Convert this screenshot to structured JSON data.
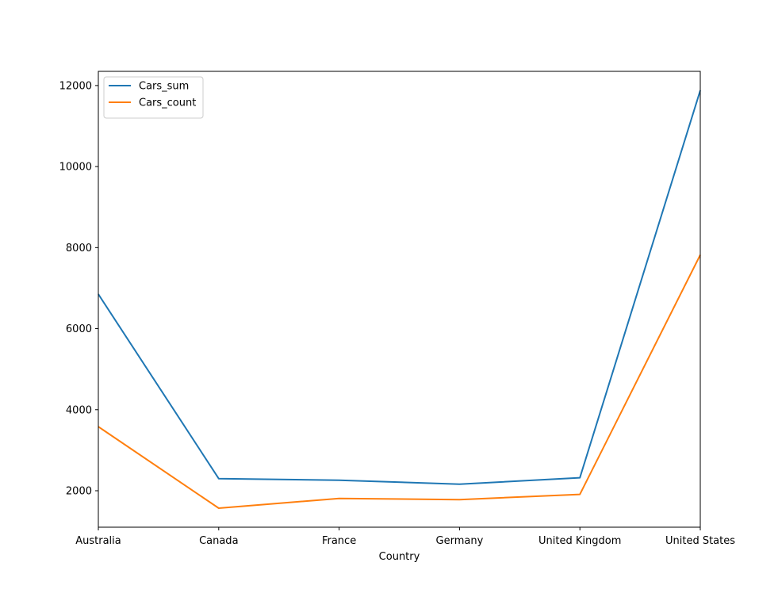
{
  "chart_data": {
    "type": "line",
    "xlabel": "Country",
    "ylabel": "",
    "categories": [
      "Australia",
      "Canada",
      "France",
      "Germany",
      "United Kingdom",
      "United States"
    ],
    "series": [
      {
        "name": "Cars_sum",
        "color": "#1f77b4",
        "values": [
          6850,
          2300,
          2260,
          2160,
          2320,
          11880
        ]
      },
      {
        "name": "Cars_count",
        "color": "#ff7f0e",
        "values": [
          3580,
          1570,
          1810,
          1780,
          1910,
          7820
        ]
      }
    ],
    "ylim": [
      1100,
      12350
    ],
    "yticks": [
      2000,
      4000,
      6000,
      8000,
      10000,
      12000
    ],
    "grid": false,
    "legend_position": "top-left"
  }
}
